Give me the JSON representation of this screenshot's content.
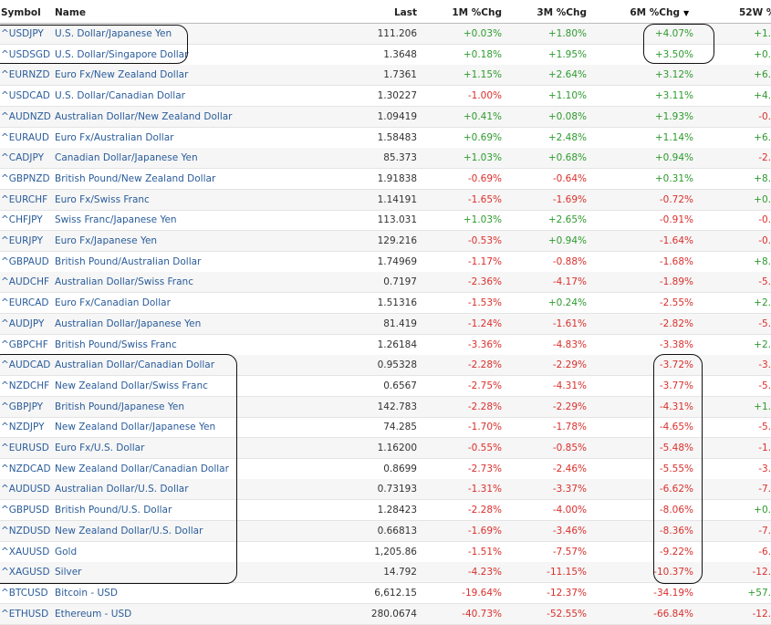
{
  "table": {
    "header": [
      "Symbol",
      "Name",
      "Last",
      "1M %Chg",
      "3M %Chg",
      "6M %Chg",
      "52W %"
    ],
    "rows": [
      [
        "^USDJPY",
        "U.S. Dollar/Japanese Yen",
        "111.206",
        "+0.03%",
        "+1.80%",
        "+4.07%",
        "+1."
      ],
      [
        "^USDSGD",
        "U.S. Dollar/Singapore Dollar",
        "1.3648",
        "+0.18%",
        "+1.95%",
        "+3.50%",
        "+0."
      ],
      [
        "^EURNZD",
        "Euro Fx/New Zealand Dollar",
        "1.7361",
        "+1.15%",
        "+2.64%",
        "+3.12%",
        "+6."
      ],
      [
        "^USDCAD",
        "U.S. Dollar/Canadian Dollar",
        "1.30227",
        "-1.00%",
        "+1.10%",
        "+3.11%",
        "+4."
      ],
      [
        "^AUDNZD",
        "Australian Dollar/New Zealand Dollar",
        "1.09419",
        "+0.41%",
        "+0.08%",
        "+1.93%",
        "-0."
      ],
      [
        "^EURAUD",
        "Euro Fx/Australian Dollar",
        "1.58483",
        "+0.69%",
        "+2.48%",
        "+1.14%",
        "+6."
      ],
      [
        "^CADJPY",
        "Canadian Dollar/Japanese Yen",
        "85.373",
        "+1.03%",
        "+0.68%",
        "+0.94%",
        "-2."
      ],
      [
        "^GBPNZD",
        "British Pound/New Zealand Dollar",
        "1.91838",
        "-0.69%",
        "-0.64%",
        "+0.31%",
        "+8."
      ],
      [
        "^EURCHF",
        "Euro Fx/Swiss Franc",
        "1.14191",
        "-1.65%",
        "-1.69%",
        "-0.72%",
        "+0."
      ],
      [
        "^CHFJPY",
        "Swiss Franc/Japanese Yen",
        "113.031",
        "+1.03%",
        "+2.65%",
        "-0.91%",
        "-0."
      ],
      [
        "^EURJPY",
        "Euro Fx/Japanese Yen",
        "129.216",
        "-0.53%",
        "+0.94%",
        "-1.64%",
        "-0."
      ],
      [
        "^GBPAUD",
        "British Pound/Australian Dollar",
        "1.74969",
        "-1.17%",
        "-0.88%",
        "-1.68%",
        "+8."
      ],
      [
        "^AUDCHF",
        "Australian Dollar/Swiss Franc",
        "0.7197",
        "-2.36%",
        "-4.17%",
        "-1.89%",
        "-5."
      ],
      [
        "^EURCAD",
        "Euro Fx/Canadian Dollar",
        "1.51316",
        "-1.53%",
        "+0.24%",
        "-2.55%",
        "+2."
      ],
      [
        "^AUDJPY",
        "Australian Dollar/Japanese Yen",
        "81.419",
        "-1.24%",
        "-1.61%",
        "-2.82%",
        "-5."
      ],
      [
        "^GBPCHF",
        "British Pound/Swiss Franc",
        "1.26184",
        "-3.36%",
        "-4.83%",
        "-3.38%",
        "+2."
      ],
      [
        "^AUDCAD",
        "Australian Dollar/Canadian Dollar",
        "0.95328",
        "-2.28%",
        "-2.29%",
        "-3.72%",
        "-3."
      ],
      [
        "^NZDCHF",
        "New Zealand Dollar/Swiss Franc",
        "0.6567",
        "-2.75%",
        "-4.31%",
        "-3.77%",
        "-5."
      ],
      [
        "^GBPJPY",
        "British Pound/Japanese Yen",
        "142.783",
        "-2.28%",
        "-2.29%",
        "-4.31%",
        "+1."
      ],
      [
        "^NZDJPY",
        "New Zealand Dollar/Japanese Yen",
        "74.285",
        "-1.70%",
        "-1.78%",
        "-4.65%",
        "-5."
      ],
      [
        "^EURUSD",
        "Euro Fx/U.S. Dollar",
        "1.16200",
        "-0.55%",
        "-0.85%",
        "-5.48%",
        "-1."
      ],
      [
        "^NZDCAD",
        "New Zealand Dollar/Canadian Dollar",
        "0.8699",
        "-2.73%",
        "-2.46%",
        "-5.55%",
        "-3."
      ],
      [
        "^AUDUSD",
        "Australian Dollar/U.S. Dollar",
        "0.73193",
        "-1.31%",
        "-3.37%",
        "-6.62%",
        "-7."
      ],
      [
        "^GBPUSD",
        "British Pound/U.S. Dollar",
        "1.28423",
        "-2.28%",
        "-4.00%",
        "-8.06%",
        "+0."
      ],
      [
        "^NZDUSD",
        "New Zealand Dollar/U.S. Dollar",
        "0.66813",
        "-1.69%",
        "-3.46%",
        "-8.36%",
        "-7."
      ],
      [
        "^XAUUSD",
        "Gold",
        "1,205.86",
        "-1.51%",
        "-7.57%",
        "-9.22%",
        "-6."
      ],
      [
        "^XAGUSD",
        "Silver",
        "14.792",
        "-4.23%",
        "-11.15%",
        "-10.37%",
        "-12."
      ],
      [
        "^BTCUSD",
        "Bitcoin - USD",
        "6,612.15",
        "-19.64%",
        "-12.37%",
        "-34.19%",
        "+57."
      ],
      [
        "^ETHUSD",
        "Ethereum - USD",
        "280.0674",
        "-40.73%",
        "-52.55%",
        "-66.84%",
        "-12."
      ]
    ]
  }
}
